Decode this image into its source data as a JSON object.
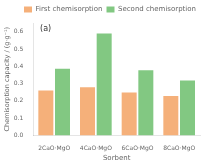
{
  "chart_data": {
    "type": "bar",
    "categories": [
      "2CaO·MgO",
      "4CaO·MgO",
      "6CaO·MgO",
      "8CaO·MgO"
    ],
    "series": [
      {
        "name": "First chemisorption",
        "color": "#F5B07A",
        "values": [
          0.26,
          0.278,
          0.248,
          0.228
        ]
      },
      {
        "name": "Second chemisorption",
        "color": "#82C882",
        "values": [
          0.385,
          0.59,
          0.377,
          0.318
        ]
      }
    ],
    "xlabel": "Sorbent",
    "ylabel": "Chemisorption capacity / (g·g⁻¹)",
    "ylim": [
      0,
      0.65
    ],
    "yticks": [
      {
        "value": 0,
        "label": "0.0"
      },
      0.1,
      0.2,
      0.3,
      0.4,
      0.5,
      0.6
    ],
    "annotation": "(a)",
    "legend": "upper right",
    "grid": false
  }
}
